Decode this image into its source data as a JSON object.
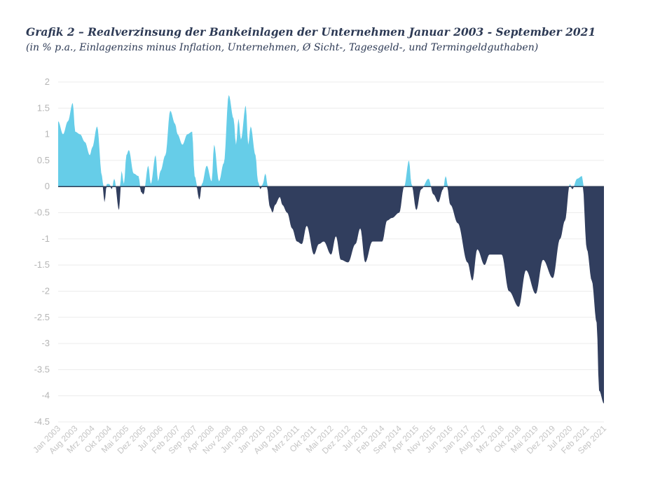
{
  "header": {
    "title": "Grafik 2 – Realverzinsung der Bankeinlagen der Unternehmen Januar 2003 - September 2021",
    "subtitle": "(in % p.a., Einlagenzins minus Inflation, Unternehmen, Ø Sicht-, Tagesgeld-, und Termingeldguthaben)"
  },
  "colors": {
    "positive": "#66cde8",
    "negative": "#313e5e",
    "zero_line": "#2d3a55",
    "grid": "#ececec"
  },
  "chart_data": {
    "type": "area",
    "title": "Grafik 2 – Realverzinsung der Bankeinlagen der Unternehmen Januar 2003 - September 2021",
    "xlabel": "",
    "ylabel": "",
    "ylim": [
      -4.5,
      2
    ],
    "yticks": [
      "2",
      "1.5",
      "1",
      "0.5",
      "0",
      "-0.5",
      "-1",
      "-1.5",
      "-2",
      "-2.5",
      "-3",
      "-3.5",
      "-4",
      "-4.5"
    ],
    "grid": true,
    "x_tick_labels": [
      "Jan 2003",
      "Aug 2003",
      "Mrz 2004",
      "Okt 2004",
      "Mai 2005",
      "Dez 2005",
      "Jul 2006",
      "Feb 2007",
      "Sep 2007",
      "Apr 2008",
      "Nov 2008",
      "Jun 2009",
      "Jan 2010",
      "Aug 2010",
      "Mrz 2011",
      "Okt 2011",
      "Mai 2012",
      "Dez 2012",
      "Jul 2013",
      "Feb 2014",
      "Sep 2014",
      "Apr 2015",
      "Nov 2015",
      "Jun 2016",
      "Jan 2017",
      "Aug 2017",
      "Mrz 2018",
      "Okt 2018",
      "Mai 2019",
      "Dez 2019",
      "Jul 2020",
      "Feb 2021",
      "Sep 2021"
    ],
    "series": [
      {
        "points": [
          [
            "Jan 2003",
            1.25
          ],
          [
            "Mar 2003",
            1.0
          ],
          [
            "May 2003",
            1.25
          ],
          [
            "Jul 2003",
            1.6
          ],
          [
            "Aug 2003",
            1.05
          ],
          [
            "Oct 2003",
            1.0
          ],
          [
            "Dec 2003",
            0.85
          ],
          [
            "Feb 2004",
            0.6
          ],
          [
            "Mrz 2004",
            0.75
          ],
          [
            "May 2004",
            1.15
          ],
          [
            "Jul 2004",
            0.2
          ],
          [
            "Aug 2004",
            -0.3
          ],
          [
            "Sep 2004",
            0.05
          ],
          [
            "Okt 2004",
            0.05
          ],
          [
            "Nov 2004",
            -0.05
          ],
          [
            "Dec 2004",
            0.15
          ],
          [
            "Feb 2005",
            -0.45
          ],
          [
            "Mar 2005",
            0.3
          ],
          [
            "Apr 2005",
            0.05
          ],
          [
            "Mai 2005",
            0.6
          ],
          [
            "Jun 2005",
            0.7
          ],
          [
            "Aug 2005",
            0.25
          ],
          [
            "Oct 2005",
            0.2
          ],
          [
            "Nov 2005",
            -0.1
          ],
          [
            "Dez 2005",
            -0.15
          ],
          [
            "Feb 2006",
            0.4
          ],
          [
            "Mar 2006",
            0.05
          ],
          [
            "May 2006",
            0.6
          ],
          [
            "Jun 2006",
            0.1
          ],
          [
            "Jul 2006",
            0.3
          ],
          [
            "Sep 2006",
            0.6
          ],
          [
            "Nov 2006",
            1.45
          ],
          [
            "Jan 2007",
            1.2
          ],
          [
            "Feb 2007",
            1.0
          ],
          [
            "Apr 2007",
            0.8
          ],
          [
            "Jun 2007",
            1.0
          ],
          [
            "Aug 2007",
            1.05
          ],
          [
            "Sep 2007",
            0.2
          ],
          [
            "Nov 2007",
            -0.25
          ],
          [
            "Dec 2007",
            0.05
          ],
          [
            "Feb 2008",
            0.4
          ],
          [
            "Apr 2008",
            0.1
          ],
          [
            "May 2008",
            0.8
          ],
          [
            "Jul 2008",
            0.1
          ],
          [
            "Sep 2008",
            0.45
          ],
          [
            "Nov 2008",
            1.75
          ],
          [
            "Jan 2009",
            1.3
          ],
          [
            "Feb 2009",
            0.8
          ],
          [
            "Mar 2009",
            1.3
          ],
          [
            "Apr 2009",
            0.9
          ],
          [
            "Jun 2009",
            1.55
          ],
          [
            "Jul 2009",
            0.8
          ],
          [
            "Aug 2009",
            1.15
          ],
          [
            "Oct 2009",
            0.6
          ],
          [
            "Nov 2009",
            0.1
          ],
          [
            "Dec 2009",
            -0.05
          ],
          [
            "Jan 2010",
            0.05
          ],
          [
            "Feb 2010",
            0.25
          ],
          [
            "Apr 2010",
            -0.4
          ],
          [
            "May 2010",
            -0.5
          ],
          [
            "Jun 2010",
            -0.35
          ],
          [
            "Aug 2010",
            -0.2
          ],
          [
            "Sep 2010",
            -0.35
          ],
          [
            "Nov 2010",
            -0.5
          ],
          [
            "Jan 2011",
            -0.8
          ],
          [
            "Mrz 2011",
            -1.05
          ],
          [
            "May 2011",
            -1.1
          ],
          [
            "Jul 2011",
            -0.75
          ],
          [
            "Okt 2011",
            -1.3
          ],
          [
            "Dec 2011",
            -1.1
          ],
          [
            "Feb 2012",
            -1.05
          ],
          [
            "Mai 2012",
            -1.3
          ],
          [
            "Jul 2012",
            -0.95
          ],
          [
            "Sep 2012",
            -1.4
          ],
          [
            "Dez 2012",
            -1.45
          ],
          [
            "Mar 2013",
            -1.1
          ],
          [
            "May 2013",
            -0.8
          ],
          [
            "Jul 2013",
            -1.45
          ],
          [
            "Oct 2013",
            -1.05
          ],
          [
            "Feb 2014",
            -1.05
          ],
          [
            "Apr 2014",
            -0.65
          ],
          [
            "Jun 2014",
            -0.6
          ],
          [
            "Sep 2014",
            -0.5
          ],
          [
            "Nov 2014",
            0.0
          ],
          [
            "Jan 2015",
            0.5
          ],
          [
            "Feb 2015",
            0.05
          ],
          [
            "Apr 2015",
            -0.45
          ],
          [
            "Jun 2015",
            -0.05
          ],
          [
            "Sep 2015",
            0.15
          ],
          [
            "Nov 2015",
            -0.15
          ],
          [
            "Jan 2016",
            -0.3
          ],
          [
            "Mar 2016",
            -0.05
          ],
          [
            "Apr 2016",
            0.2
          ],
          [
            "Jun 2016",
            -0.35
          ],
          [
            "Sep 2016",
            -0.7
          ],
          [
            "Jan 2017",
            -1.45
          ],
          [
            "Mar 2017",
            -1.8
          ],
          [
            "May 2017",
            -1.2
          ],
          [
            "Aug 2017",
            -1.5
          ],
          [
            "Oct 2017",
            -1.3
          ],
          [
            "Mrz 2018",
            -1.3
          ],
          [
            "Jun 2018",
            -2.0
          ],
          [
            "Okt 2018",
            -2.3
          ],
          [
            "Jan 2019",
            -1.6
          ],
          [
            "Mai 2019",
            -2.05
          ],
          [
            "Aug 2019",
            -1.4
          ],
          [
            "Dez 2019",
            -1.75
          ],
          [
            "Mar 2020",
            -1.0
          ],
          [
            "May 2020",
            -0.65
          ],
          [
            "Jul 2020",
            0.05
          ],
          [
            "Aug 2020",
            -0.05
          ],
          [
            "Oct 2020",
            0.15
          ],
          [
            "Dec 2020",
            0.2
          ],
          [
            "Feb 2021",
            -1.2
          ],
          [
            "Apr 2021",
            -1.8
          ],
          [
            "Jun 2021",
            -2.6
          ],
          [
            "Jul 2021",
            -3.9
          ],
          [
            "Sep 2021",
            -4.15
          ]
        ]
      }
    ]
  }
}
